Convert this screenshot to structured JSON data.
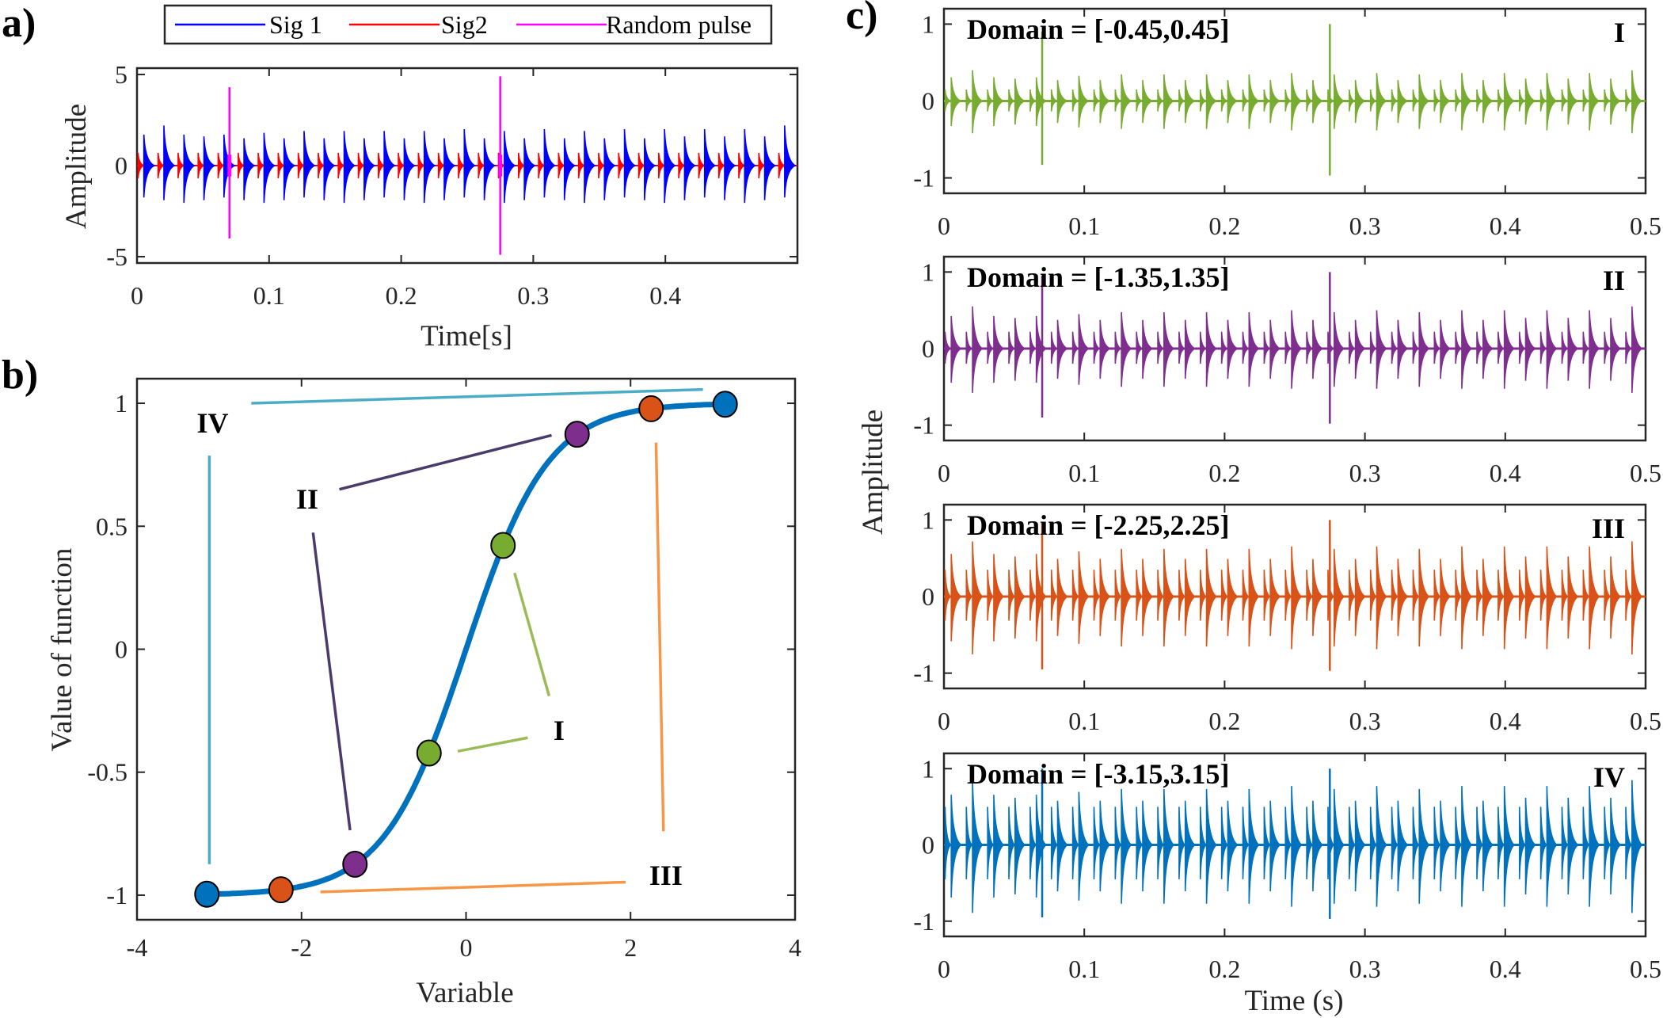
{
  "chart_data": [
    {
      "panel_label": "a)",
      "type": "line",
      "xlabel": "Time[s]",
      "ylabel": "Amplitude",
      "xlim": [
        0,
        0.5
      ],
      "ylim": [
        -5.35,
        5.35
      ],
      "xticks": [
        "0",
        "0.1",
        "0.2",
        "0.3",
        "0.4"
      ],
      "xtick_values": [
        0,
        0.1,
        0.2,
        0.3,
        0.4
      ],
      "yticks": [
        "-5",
        "0",
        "5"
      ],
      "ytick_values": [
        -5,
        0,
        5
      ],
      "legend_position": "top",
      "series": [
        {
          "name": "Sig 1",
          "color": "#0000ff",
          "kind": "periodic decaying impulses",
          "first_impulse_time": 0.0052,
          "period": 0.01516,
          "peak_amplitudes": [
            1.7,
            2.2,
            1.7,
            1.6,
            1.7,
            1.5,
            1.8,
            1.5,
            1.9,
            1.5,
            1.9,
            1.5,
            1.9,
            1.5,
            1.9,
            1.5,
            2.0,
            1.5,
            1.9,
            1.5,
            2.0,
            1.5,
            1.9,
            1.5,
            2.0,
            1.5,
            2.0,
            1.6,
            2.0,
            1.6,
            2.0,
            1.6,
            2.2
          ],
          "negative_peak": -1.9
        },
        {
          "name": "Sig2",
          "color": "#ff0000",
          "kind": "periodic decaying impulses",
          "first_impulse_time": 0.0008,
          "period": 0.01516,
          "peak_amplitude": 0.7
        },
        {
          "name": "Random pulse",
          "color": "#ff00ff",
          "kind": "impulses",
          "times": [
            0.07,
            0.275
          ],
          "positive_peaks": [
            4.3,
            4.9
          ],
          "negative_peaks": [
            -4.0,
            -4.9
          ]
        }
      ]
    },
    {
      "panel_label": "b)",
      "type": "line",
      "xlabel": "Variable",
      "ylabel": "Value of function",
      "xlim": [
        -4,
        4
      ],
      "ylim": [
        -1.1,
        1.1
      ],
      "xticks": [
        "-4",
        "-2",
        "0",
        "2",
        "4"
      ],
      "xtick_values": [
        -4,
        -2,
        0,
        2,
        4
      ],
      "yticks": [
        "-1",
        "-0.5",
        "0",
        "0.5",
        "1"
      ],
      "ytick_values": [
        -1,
        -0.5,
        0,
        0.5,
        1
      ],
      "curve": {
        "function": "tanh(x)",
        "x_range": [
          -3.15,
          3.15
        ],
        "color": "#0072bd"
      },
      "points": [
        {
          "x": -0.45,
          "y": -0.422,
          "color": "#77ac30"
        },
        {
          "x": 0.45,
          "y": 0.422,
          "color": "#77ac30"
        },
        {
          "x": -1.35,
          "y": -0.874,
          "color": "#7e2f8e"
        },
        {
          "x": 1.35,
          "y": 0.874,
          "color": "#7e2f8e"
        },
        {
          "x": -2.25,
          "y": -0.978,
          "color": "#d95319"
        },
        {
          "x": 2.25,
          "y": 0.978,
          "color": "#d95319"
        },
        {
          "x": -3.15,
          "y": -0.996,
          "color": "#0072bd"
        },
        {
          "x": 3.15,
          "y": 0.996,
          "color": "#0072bd"
        }
      ],
      "annotations": [
        {
          "label": "I",
          "color": "#9bbb59",
          "label_at": [
            1.13,
            -0.33
          ],
          "lines": [
            [
              [
                0.59,
                0.31
              ],
              [
                1.01,
                -0.19
              ]
            ],
            [
              [
                -0.1,
                -0.415
              ],
              [
                0.75,
                -0.36
              ]
            ]
          ]
        },
        {
          "label": "II",
          "color": "#4b3b6b",
          "label_at": [
            -1.93,
            0.61
          ],
          "lines": [
            [
              [
                -1.54,
                0.65
              ],
              [
                1.04,
                0.87
              ]
            ],
            [
              [
                -1.86,
                0.474
              ],
              [
                -1.41,
                -0.736
              ]
            ]
          ]
        },
        {
          "label": "III",
          "color": "#f79646",
          "label_at": [
            2.43,
            -0.92
          ],
          "lines": [
            [
              [
                -1.77,
                -0.987
              ],
              [
                1.94,
                -0.947
              ]
            ],
            [
              [
                2.31,
                0.84
              ],
              [
                2.4,
                -0.74
              ]
            ]
          ]
        },
        {
          "label": "IV",
          "color": "#4bacc6",
          "label_at": [
            -3.08,
            0.92
          ],
          "lines": [
            [
              [
                -2.61,
                1.0
              ],
              [
                2.88,
                1.056
              ]
            ],
            [
              [
                -3.12,
                0.787
              ],
              [
                -3.12,
                -0.874
              ]
            ]
          ]
        }
      ]
    },
    {
      "panel_label": "c)",
      "type": "line",
      "xlabel": "Time (s)",
      "ylabel": "Amplitude",
      "xlim": [
        0,
        0.5
      ],
      "ylim": [
        -1.2,
        1.2
      ],
      "xticks": [
        "0",
        "0.1",
        "0.2",
        "0.3",
        "0.4",
        "0.5"
      ],
      "xtick_values": [
        0,
        0.1,
        0.2,
        0.3,
        0.4,
        0.5
      ],
      "yticks": [
        "-1",
        "0",
        "1"
      ],
      "ytick_values": [
        -1,
        0,
        1
      ],
      "subplots": [
        {
          "title": "Domain = [-0.45,0.45]",
          "tag": "I",
          "color": "#77ac30",
          "sig1_peak": 0.4,
          "sig2_peak": 0.15,
          "pulse_pos": [
            0.9,
            1.0
          ],
          "pulse_neg": [
            -0.83,
            -0.97
          ]
        },
        {
          "title": "Domain = [-1.35,1.35]",
          "tag": "II",
          "color": "#7e2f8e",
          "sig1_peak": 0.55,
          "sig2_peak": 0.22,
          "pulse_pos": [
            0.95,
            1.0
          ],
          "pulse_neg": [
            -0.9,
            -0.98
          ]
        },
        {
          "title": "Domain = [-2.25,2.25]",
          "tag": "III",
          "color": "#d95319",
          "sig1_peak": 0.72,
          "sig2_peak": 0.35,
          "pulse_pos": [
            0.97,
            1.0
          ],
          "pulse_neg": [
            -0.95,
            -0.97
          ]
        },
        {
          "title": "Domain = [-3.15,3.15]",
          "tag": "IV",
          "color": "#0072bd",
          "sig1_peak": 0.85,
          "sig2_peak": 0.5,
          "pulse_pos": [
            1.0,
            1.0
          ],
          "pulse_neg": [
            -0.95,
            -0.97
          ]
        }
      ]
    }
  ]
}
